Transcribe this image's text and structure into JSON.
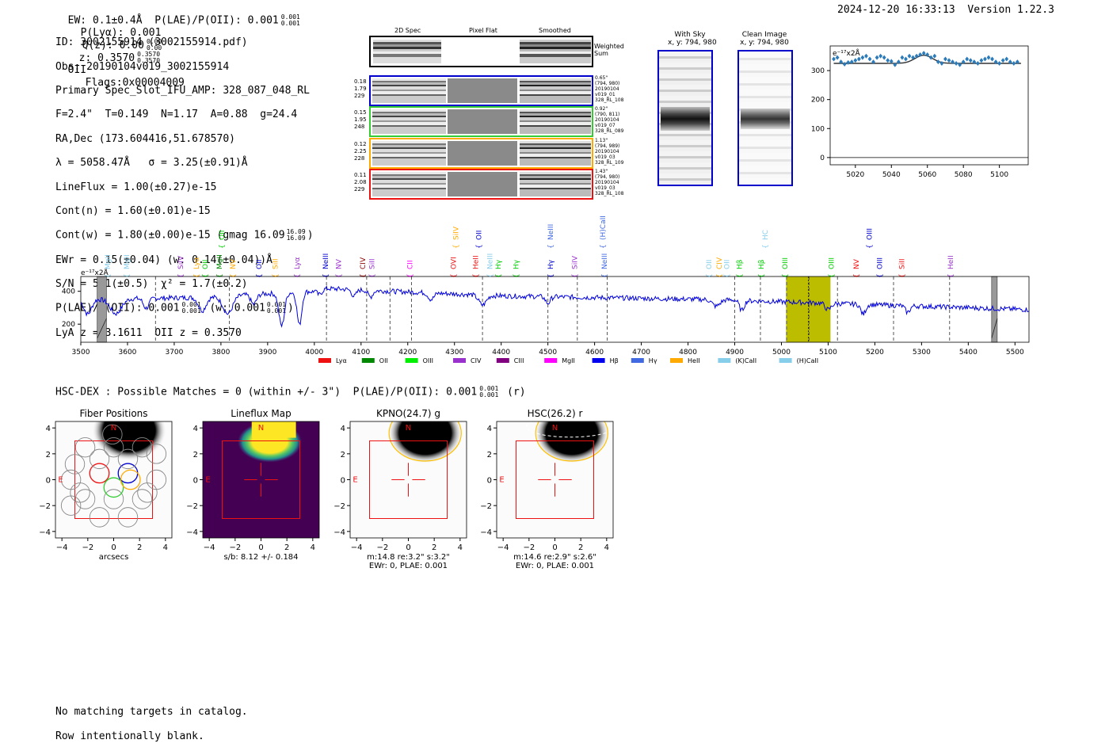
{
  "header": {
    "ew_line": "EW: 0.1±0.4Å  P(LAE)/P(OII): 0.001",
    "ew_sup": "0.001",
    "ew_sub": "0.001",
    "plya": "P(Lyα): 0.001",
    "qz": "Q(z): 0.00",
    "qz_sup": "0.00",
    "qz_sub": "0.00",
    "z": "z: 0.3570",
    "z_sup": "0.3570",
    "z_sub": "0.3570",
    "z_type": "OII",
    "flags": "Flags:0x00004009",
    "timestamp": "2024-12-20 16:33:13",
    "version": "Version 1.22.3"
  },
  "info": {
    "lines": [
      "ID: 3002155914 (3002155914.pdf)",
      "Obs: 20190104v019_3002155914",
      "Primary Spec_Slot_IFU_AMP: 328_087_048_RL",
      "F=2.4\"  T=0.149  N=1.17  A=0.88  g=24.4",
      "RA,Dec (173.604416,51.678570)",
      "λ = 5058.47Å   σ = 3.25(±0.91)Å",
      "LineFlux = 1.00(±0.27)e-15",
      "Cont(n) = 1.60(±0.01)e-15",
      "Cont(w) = 1.80(±0.00)e-15 (gmag 16.09",
      "EWr = 0.15(±0.04) (w: 0.14(±0.04))Å",
      "S/N = 5.1(±0.5)  χ² = 1.7(±0.2)",
      "P(LAE)/P(OII): 0.001",
      "LyA z = 3.1611  OII z = 0.3570"
    ],
    "gmag_sup": "16.09",
    "gmag_sub": "16.09",
    "plae_sup": "0.001",
    "plae_sub": "0.001",
    "plae_w": "(w: 0.001",
    "plae_w_sup": "0.001",
    "plae_w_sub": "0.001"
  },
  "cutouts": {
    "col_titles": [
      "2D Spec",
      "Pixel Flat",
      "Smoothed"
    ],
    "weighted_label": "Weighted\nSum",
    "fibers": [
      {
        "color": "#0000cc",
        "left": "0.18\n1.79\n229",
        "right": "0.65\"\n(794, 980)\n20190104\nv019_01\n328_RL_108"
      },
      {
        "color": "#33cc33",
        "left": "0.15\n1.95\n248",
        "right": "0.92\"\n(790, 811)\n20190104\nv019_07\n328_RL_089"
      },
      {
        "color": "#ffaa00",
        "left": "0.12\n2.25\n228",
        "right": "1.13\"\n(794, 989)\n20190104\nv019_03\n328_RL_109"
      },
      {
        "color": "#ee1111",
        "left": "0.11\n2.08\n229",
        "right": "1.43\"\n(794, 980)\n20190104\nv019_03\n328_RL_108"
      }
    ],
    "with_sky_title": "With Sky\nx, y: 794, 980",
    "clean_title": "Clean Image\nx, y: 794, 980"
  },
  "zoom_chart": {
    "type": "scatter",
    "ylabel": "e⁻¹⁷x2Å",
    "xticks": [
      5020,
      5040,
      5060,
      5080,
      5100
    ],
    "yticks": [
      0,
      100,
      200,
      300
    ],
    "xlim": [
      5006,
      5116
    ],
    "ylim": [
      -25,
      385
    ],
    "x": [
      5008,
      5010,
      5012,
      5014,
      5016,
      5018,
      5020,
      5022,
      5024,
      5026,
      5028,
      5030,
      5032,
      5034,
      5036,
      5038,
      5040,
      5042,
      5044,
      5046,
      5048,
      5050,
      5052,
      5054,
      5056,
      5058,
      5060,
      5062,
      5064,
      5066,
      5068,
      5070,
      5072,
      5074,
      5076,
      5078,
      5080,
      5082,
      5084,
      5086,
      5088,
      5090,
      5092,
      5094,
      5096,
      5098,
      5100,
      5102,
      5104,
      5106,
      5108,
      5110
    ],
    "y": [
      340,
      345,
      330,
      322,
      328,
      330,
      335,
      340,
      345,
      350,
      340,
      330,
      345,
      350,
      345,
      335,
      332,
      320,
      330,
      345,
      340,
      350,
      345,
      350,
      355,
      360,
      355,
      345,
      350,
      330,
      325,
      340,
      335,
      330,
      325,
      320,
      330,
      340,
      335,
      330,
      325,
      335,
      340,
      345,
      340,
      330,
      325,
      335,
      340,
      330,
      325,
      330
    ],
    "fit_baseline": 325,
    "fit_center": 5058,
    "fit_sigma": 3.25,
    "fit_amp": 28
  },
  "spectrum": {
    "type": "line",
    "ylabel": "e⁻¹⁷x2Å",
    "xticks": [
      3500,
      3600,
      3700,
      3800,
      3900,
      4000,
      4100,
      4200,
      4300,
      4400,
      4500,
      4600,
      4700,
      4800,
      4900,
      5000,
      5100,
      5200,
      5300,
      5400,
      5500
    ],
    "yticks": [
      200,
      400
    ],
    "xlim": [
      3500,
      5530
    ],
    "ylim": [
      90,
      490
    ],
    "highlight": [
      5010,
      5105
    ],
    "highlight_center": 5058,
    "gaps": [
      [
        3535,
        3555
      ],
      [
        5450,
        5462
      ]
    ],
    "dashed_lines": [
      3660,
      3818,
      4026,
      4112,
      4162,
      4208,
      4360,
      4500,
      4563,
      4627,
      4900,
      4955,
      5011,
      5059,
      5120,
      5240,
      5360
    ],
    "lines": [
      {
        "label": "MgII",
        "x": 3558,
        "tier": 1,
        "color": "#87ceeb"
      },
      {
        "label": "MgII",
        "x": 3598,
        "tier": 1,
        "color": "#87ceeb"
      },
      {
        "label": "SiIV",
        "x": 3714,
        "tier": 1,
        "color": "#9932cc"
      },
      {
        "label": "Lyα",
        "x": 3748,
        "tier": 1,
        "color": "#ffaa00"
      },
      {
        "label": "OII",
        "x": 3766,
        "tier": 1,
        "color": "#00cc00"
      },
      {
        "label": "MgII",
        "x": 3797,
        "tier": 1,
        "color": "#008800"
      },
      {
        "label": "OII",
        "x": 3802,
        "tier": 3,
        "color": "#00cc00"
      },
      {
        "label": "NV",
        "x": 3826,
        "tier": 1,
        "color": "#ffaa00"
      },
      {
        "label": "OII",
        "x": 3882,
        "tier": 1,
        "color": "#0000cc"
      },
      {
        "label": "SiII",
        "x": 3916,
        "tier": 1,
        "color": "#ffaa00"
      },
      {
        "label": "Lyα",
        "x": 3963,
        "tier": 1,
        "color": "#9932cc"
      },
      {
        "label": "NeIII",
        "x": 4024,
        "tier": 1,
        "color": "#0000cc"
      },
      {
        "label": "NV",
        "x": 4052,
        "tier": 1,
        "color": "#9932cc"
      },
      {
        "label": "CIV",
        "x": 4104,
        "tier": 1,
        "color": "#8b0000"
      },
      {
        "label": "SiII",
        "x": 4123,
        "tier": 1,
        "color": "#9932cc"
      },
      {
        "label": "CII",
        "x": 4205,
        "tier": 1,
        "color": "#ff00ff"
      },
      {
        "label": "OVI",
        "x": 4298,
        "tier": 1,
        "color": "#ee1111"
      },
      {
        "label": "SiIV",
        "x": 4303,
        "tier": 3,
        "color": "#ffaa00"
      },
      {
        "label": "HeII",
        "x": 4345,
        "tier": 1,
        "color": "#ee1111"
      },
      {
        "label": "OII",
        "x": 4352,
        "tier": 3,
        "color": "#0000cc"
      },
      {
        "label": "NeIII",
        "x": 4376,
        "tier": 1,
        "color": "#87ceeb"
      },
      {
        "label": "Hγ",
        "x": 4394,
        "tier": 1,
        "color": "#00cc00"
      },
      {
        "label": "Hγ",
        "x": 4432,
        "tier": 1,
        "color": "#00cc00"
      },
      {
        "label": "Hγ",
        "x": 4506,
        "tier": 1,
        "color": "#0000cc"
      },
      {
        "label": "NeIII",
        "x": 4506,
        "tier": 3,
        "color": "#4169e1"
      },
      {
        "label": "SiIV",
        "x": 4557,
        "tier": 1,
        "color": "#9932cc"
      },
      {
        "label": "NeIII",
        "x": 4621,
        "tier": 1,
        "color": "#4169e1"
      },
      {
        "label": "(H)CaII",
        "x": 4618,
        "tier": 3,
        "color": "#4169e1"
      },
      {
        "label": "OII",
        "x": 4845,
        "tier": 1,
        "color": "#87ceeb"
      },
      {
        "label": "CIV",
        "x": 4867,
        "tier": 1,
        "color": "#ffaa00"
      },
      {
        "label": "OII",
        "x": 4883,
        "tier": 1,
        "color": "#87ceeb"
      },
      {
        "label": "Hβ",
        "x": 4910,
        "tier": 1,
        "color": "#00cc00"
      },
      {
        "label": "Hβ",
        "x": 4957,
        "tier": 1,
        "color": "#00cc00"
      },
      {
        "label": "HC",
        "x": 4965,
        "tier": 2,
        "color": "#87ceeb"
      },
      {
        "label": "OIII",
        "x": 5008,
        "tier": 1,
        "color": "#00cc00"
      },
      {
        "label": "OIII",
        "x": 5107,
        "tier": 1,
        "color": "#00cc00"
      },
      {
        "label": "NV",
        "x": 5160,
        "tier": 1,
        "color": "#ee1111"
      },
      {
        "label": "OIII",
        "x": 5188,
        "tier": 3,
        "color": "#0000cc"
      },
      {
        "label": "OIII",
        "x": 5210,
        "tier": 1,
        "color": "#0000cc"
      },
      {
        "label": "SiII",
        "x": 5258,
        "tier": 1,
        "color": "#ee1111"
      },
      {
        "label": "HeII",
        "x": 5362,
        "tier": 1,
        "color": "#9932cc"
      }
    ],
    "legend": [
      {
        "label": "Lyα",
        "color": "#ee1111"
      },
      {
        "label": "OII",
        "color": "#008800"
      },
      {
        "label": "OIII",
        "color": "#00ee00"
      },
      {
        "label": "CIV",
        "color": "#9932cc"
      },
      {
        "label": "CIII",
        "color": "#800080"
      },
      {
        "label": "MgII",
        "color": "#ff00ff"
      },
      {
        "label": "Hβ",
        "color": "#0000ee"
      },
      {
        "label": "Hγ",
        "color": "#4169e1"
      },
      {
        "label": "HeII",
        "color": "#ffaa00"
      },
      {
        "label": "(K)CaII",
        "color": "#87ceeb"
      },
      {
        "label": "(H)CaII",
        "color": "#87ceeb"
      }
    ]
  },
  "hsc": {
    "line_prefix": "HSC-DEX : Possible Matches = 0 (within +/- 3\")  P(LAE)/P(OII): 0.001",
    "sup": "0.001",
    "sub": "0.001",
    "suffix": "(r)"
  },
  "panels": [
    {
      "title": "Fiber Positions",
      "caption": "arcsecs"
    },
    {
      "title": "Lineflux Map",
      "caption": "s/b: 8.12 +/- 0.184"
    },
    {
      "title": "KPNO(24.7) g",
      "caption": "m:14.8  re:3.2\"  s:3.2\"\nEWr: 0, PLAE: 0.001"
    },
    {
      "title": "HSC(26.2) r",
      "caption": "m:14.6  re:2.9\"  s:2.6\"\nEWr: 0, PLAE: 0.001"
    }
  ],
  "panel_ticks": [
    "−4",
    "−2",
    "0",
    "2",
    "4"
  ],
  "compass": {
    "north": "N",
    "east": "E"
  },
  "footer": {
    "line1": "No matching targets in catalog.",
    "line2": "Row intentionally blank."
  }
}
